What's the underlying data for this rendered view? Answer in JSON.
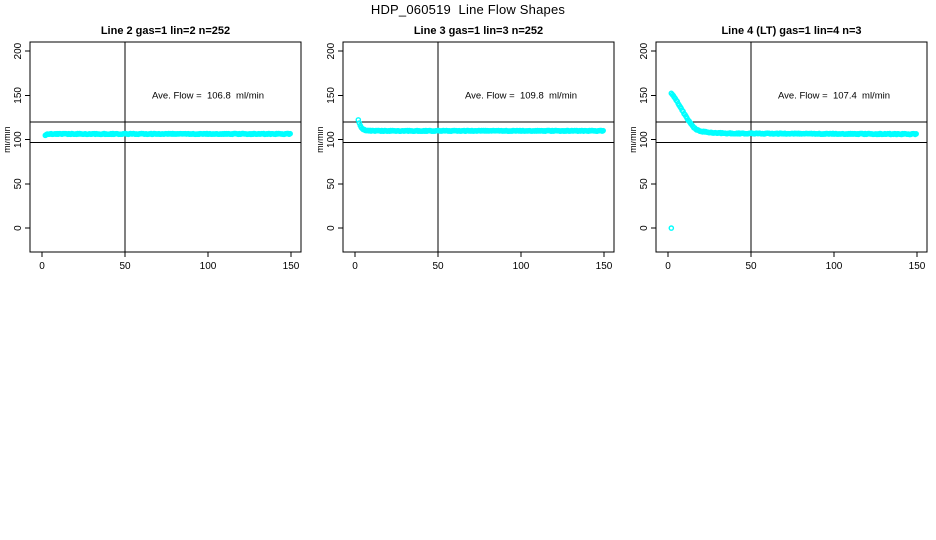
{
  "page": {
    "title": "HDP_060519  Line Flow Shapes",
    "background": "#ffffff"
  },
  "chart_data": [
    {
      "type": "scatter",
      "title": "Line 2 gas=1 lin=2 n=252",
      "annotation": "Ave. Flow =  106.8  ml/min",
      "ave_flow_ml_min": 106.8,
      "ylabel": "ml/min",
      "xlabel": "",
      "xlim": [
        0,
        150
      ],
      "ylim": [
        0,
        200
      ],
      "x_ticks": [
        0,
        50,
        100,
        150
      ],
      "y_ticks": [
        0,
        50,
        100,
        150,
        200
      ],
      "grid": false,
      "point_color": "#00ffff",
      "line_color": "#000000",
      "h_ref_lines": [
        120,
        97
      ],
      "v_ref_lines": [
        50
      ],
      "series": {
        "name": "flow-shape",
        "x_start": 2,
        "x_end": 150,
        "x_step": 0.59,
        "jitter": 0.45,
        "profile": [
          [
            2,
            104.5
          ],
          [
            3,
            106
          ],
          [
            5,
            106.4
          ],
          [
            150,
            106.4
          ]
        ]
      },
      "outliers": []
    },
    {
      "type": "scatter",
      "title": "Line 3 gas=1 lin=3 n=252",
      "annotation": "Ave. Flow =  109.8  ml/min",
      "ave_flow_ml_min": 109.8,
      "ylabel": "ml/min",
      "xlabel": "",
      "xlim": [
        0,
        150
      ],
      "ylim": [
        0,
        200
      ],
      "x_ticks": [
        0,
        50,
        100,
        150
      ],
      "y_ticks": [
        0,
        50,
        100,
        150,
        200
      ],
      "grid": false,
      "point_color": "#00ffff",
      "line_color": "#000000",
      "h_ref_lines": [
        120,
        97
      ],
      "v_ref_lines": [
        50
      ],
      "series": {
        "name": "flow-shape",
        "x_start": 2,
        "x_end": 150,
        "x_step": 0.59,
        "jitter": 0.4,
        "profile": [
          [
            2,
            122
          ],
          [
            2.6,
            118.5
          ],
          [
            3.2,
            115.5
          ],
          [
            4,
            113
          ],
          [
            5,
            111.5
          ],
          [
            6.5,
            110.5
          ],
          [
            9,
            110
          ],
          [
            13,
            109.9
          ],
          [
            150,
            109.9
          ]
        ]
      },
      "outliers": []
    },
    {
      "type": "scatter",
      "title": "Line 4 (LT) gas=1 lin=4 n=3",
      "annotation": "Ave. Flow =  107.4  ml/min",
      "ave_flow_ml_min": 107.4,
      "ylabel": "ml/min",
      "xlabel": "",
      "xlim": [
        0,
        150
      ],
      "ylim": [
        0,
        200
      ],
      "x_ticks": [
        0,
        50,
        100,
        150
      ],
      "y_ticks": [
        0,
        50,
        100,
        150,
        200
      ],
      "grid": false,
      "point_color": "#00ffff",
      "line_color": "#000000",
      "h_ref_lines": [
        120,
        97
      ],
      "v_ref_lines": [
        50
      ],
      "series": {
        "name": "flow-shape",
        "x_start": 2,
        "x_end": 150,
        "x_step": 0.59,
        "jitter": 0.5,
        "profile": [
          [
            2,
            152
          ],
          [
            4,
            147.5
          ],
          [
            6,
            141.5
          ],
          [
            8,
            135
          ],
          [
            10,
            128.5
          ],
          [
            12,
            122.5
          ],
          [
            14,
            117
          ],
          [
            16,
            113
          ],
          [
            18,
            110.5
          ],
          [
            20,
            109.3
          ],
          [
            24,
            108.3
          ],
          [
            30,
            107.5
          ],
          [
            40,
            107
          ],
          [
            60,
            106.8
          ],
          [
            100,
            106.5
          ],
          [
            150,
            106.2
          ]
        ]
      },
      "outliers": [
        [
          2,
          0
        ]
      ]
    }
  ]
}
